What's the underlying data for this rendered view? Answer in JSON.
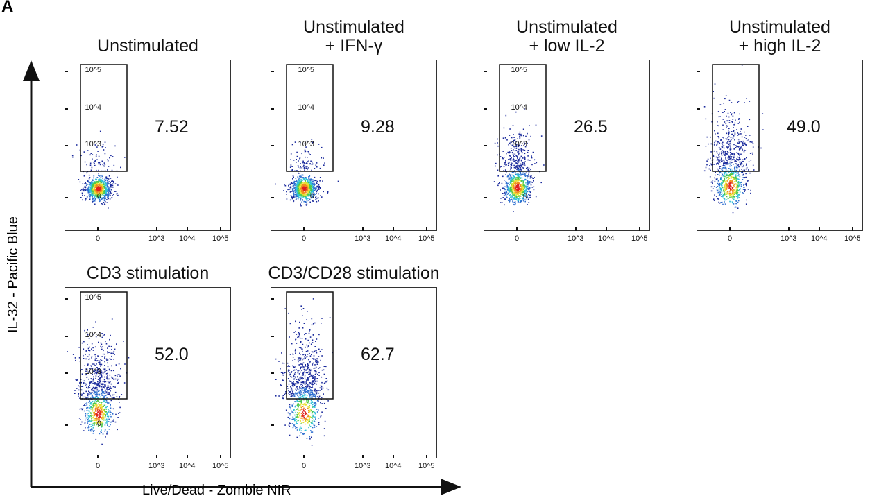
{
  "figure_label": "A",
  "chart_data": {
    "type": "scatter",
    "subtype": "flow cytometry density dot plots with gate",
    "xlabel": "Live/Dead - Zombie NIR",
    "ylabel": "IL-32 - Pacific Blue",
    "x_ticks": [
      "0",
      "10^3",
      "10^4",
      "10^5"
    ],
    "y_ticks": [
      "0",
      "10^3",
      "10^4",
      "10^5"
    ],
    "scale": "biexponential",
    "color_scale": [
      "#1a2a9c",
      "#2f6fd0",
      "#2fc0d8",
      "#4cc84a",
      "#e8e030",
      "#f08a20",
      "#e02020"
    ],
    "panels": [
      {
        "title": [
          "Unstimulated"
        ],
        "gate_percent": "7.52"
      },
      {
        "title": [
          "Unstimulated",
          "+ IFN-γ"
        ],
        "gate_percent": "9.28"
      },
      {
        "title": [
          "Unstimulated",
          "+ low IL-2"
        ],
        "gate_percent": "26.5"
      },
      {
        "title": [
          "Unstimulated",
          "+ high IL-2"
        ],
        "gate_percent": "49.0"
      },
      {
        "title": [
          "CD3 stimulation"
        ],
        "gate_percent": "52.0"
      },
      {
        "title": [
          "CD3/CD28 stimulation"
        ],
        "gate_percent": "62.7"
      }
    ]
  }
}
